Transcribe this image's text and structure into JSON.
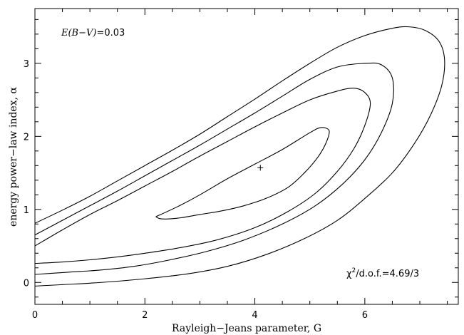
{
  "chart_data": {
    "type": "contour",
    "xlabel": "Rayleigh−Jeans parameter, G",
    "ylabel": "energy power−law index, α",
    "xlim": [
      0,
      7.7
    ],
    "ylim": [
      -0.3,
      3.75
    ],
    "x_ticks": [
      "0",
      "2",
      "4",
      "6"
    ],
    "y_ticks": [
      "0",
      "1",
      "2",
      "3"
    ],
    "x_tick_values": [
      0,
      2,
      4,
      6
    ],
    "y_tick_values": [
      0,
      1,
      2,
      3
    ],
    "x_minor_step": 0.5,
    "y_minor_step": 0.2,
    "annotations": {
      "ebv_label": "E(B−V)",
      "ebv_value": "=0.03",
      "chi_symbol": "χ",
      "chi_sup": "2",
      "chi_value": "/d.o.f.=4.69/3"
    },
    "best_fit": {
      "x": 4.1,
      "y": 1.57
    },
    "contours": [
      {
        "name": "inner",
        "points": [
          [
            2.2,
            0.9
          ],
          [
            2.6,
            1.04
          ],
          [
            3.0,
            1.2
          ],
          [
            3.5,
            1.42
          ],
          [
            4.0,
            1.62
          ],
          [
            4.5,
            1.82
          ],
          [
            5.0,
            2.05
          ],
          [
            5.2,
            2.12
          ],
          [
            5.35,
            2.08
          ],
          [
            5.3,
            1.92
          ],
          [
            5.15,
            1.72
          ],
          [
            4.9,
            1.5
          ],
          [
            4.6,
            1.3
          ],
          [
            4.2,
            1.15
          ],
          [
            3.8,
            1.05
          ],
          [
            3.4,
            0.98
          ],
          [
            3.0,
            0.93
          ],
          [
            2.6,
            0.88
          ],
          [
            2.3,
            0.87
          ],
          [
            2.2,
            0.9
          ]
        ]
      },
      {
        "name": "second",
        "points": [
          [
            0,
            0.5
          ],
          [
            0.5,
            0.72
          ],
          [
            1.0,
            0.93
          ],
          [
            1.5,
            1.12
          ],
          [
            2.0,
            1.32
          ],
          [
            2.5,
            1.52
          ],
          [
            3.0,
            1.73
          ],
          [
            3.5,
            1.93
          ],
          [
            4.0,
            2.13
          ],
          [
            4.5,
            2.32
          ],
          [
            5.0,
            2.5
          ],
          [
            5.5,
            2.62
          ],
          [
            5.8,
            2.66
          ],
          [
            6.0,
            2.6
          ],
          [
            6.1,
            2.45
          ],
          [
            6.0,
            2.15
          ],
          [
            5.8,
            1.83
          ],
          [
            5.5,
            1.52
          ],
          [
            5.1,
            1.22
          ],
          [
            4.6,
            0.97
          ],
          [
            4.0,
            0.75
          ],
          [
            3.3,
            0.58
          ],
          [
            2.6,
            0.47
          ],
          [
            2.0,
            0.4
          ],
          [
            1.5,
            0.35
          ],
          [
            1.0,
            0.31
          ],
          [
            0.5,
            0.28
          ],
          [
            0,
            0.26
          ]
        ]
      },
      {
        "name": "third",
        "points": [
          [
            0,
            0.65
          ],
          [
            0.5,
            0.85
          ],
          [
            1.0,
            1.05
          ],
          [
            1.5,
            1.25
          ],
          [
            2.0,
            1.46
          ],
          [
            2.5,
            1.67
          ],
          [
            3.0,
            1.88
          ],
          [
            3.5,
            2.1
          ],
          [
            4.0,
            2.32
          ],
          [
            4.5,
            2.55
          ],
          [
            5.0,
            2.78
          ],
          [
            5.5,
            2.95
          ],
          [
            6.0,
            3.0
          ],
          [
            6.3,
            2.98
          ],
          [
            6.5,
            2.8
          ],
          [
            6.5,
            2.45
          ],
          [
            6.3,
            2.05
          ],
          [
            6.0,
            1.68
          ],
          [
            5.6,
            1.35
          ],
          [
            5.1,
            1.05
          ],
          [
            4.5,
            0.8
          ],
          [
            3.8,
            0.58
          ],
          [
            3.1,
            0.42
          ],
          [
            2.4,
            0.3
          ],
          [
            1.8,
            0.22
          ],
          [
            1.2,
            0.17
          ],
          [
            0.6,
            0.14
          ],
          [
            0,
            0.11
          ]
        ]
      },
      {
        "name": "outer",
        "points": [
          [
            0,
            0.81
          ],
          [
            0.5,
            0.99
          ],
          [
            1.0,
            1.18
          ],
          [
            1.5,
            1.39
          ],
          [
            2.0,
            1.6
          ],
          [
            2.5,
            1.81
          ],
          [
            3.0,
            2.03
          ],
          [
            3.5,
            2.27
          ],
          [
            4.0,
            2.51
          ],
          [
            4.5,
            2.76
          ],
          [
            5.0,
            3.0
          ],
          [
            5.5,
            3.22
          ],
          [
            6.0,
            3.38
          ],
          [
            6.5,
            3.48
          ],
          [
            6.8,
            3.5
          ],
          [
            7.1,
            3.45
          ],
          [
            7.35,
            3.3
          ],
          [
            7.45,
            3.05
          ],
          [
            7.4,
            2.7
          ],
          [
            7.2,
            2.3
          ],
          [
            6.9,
            1.9
          ],
          [
            6.5,
            1.5
          ],
          [
            6.0,
            1.15
          ],
          [
            5.5,
            0.85
          ],
          [
            4.9,
            0.6
          ],
          [
            4.2,
            0.38
          ],
          [
            3.5,
            0.22
          ],
          [
            2.8,
            0.12
          ],
          [
            2.0,
            0.05
          ],
          [
            1.2,
            0.0
          ],
          [
            0.5,
            -0.03
          ],
          [
            0,
            -0.05
          ]
        ]
      }
    ]
  }
}
